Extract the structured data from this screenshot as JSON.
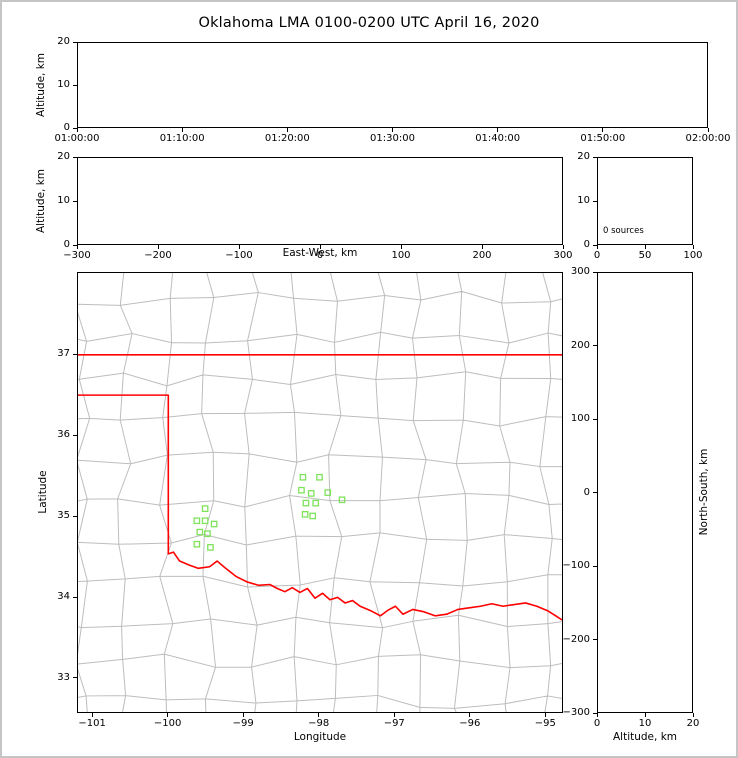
{
  "title": "Oklahoma LMA 0100-0200 UTC April 16, 2020",
  "colors": {
    "background": "#ffffff",
    "frame_border": "#c5c5c5",
    "axis": "#000000",
    "county_line": "#bdbdbd",
    "state_border": "#ff0000",
    "station_marker": "#7ee25a"
  },
  "chart_data": {
    "type": "scatter",
    "description": "Lightning Mapping Array multi-panel display: time-height, east-west height, altitude histogram, plan view map, north-south height. No lightning sources plotted; green squares are LMA stations.",
    "source_count": 0,
    "panels": [
      {
        "id": "time_height",
        "ylabel": "Altitude, km",
        "xlim": [
          0,
          3600
        ],
        "ylim": [
          0,
          20
        ],
        "xtick_vals": [
          0,
          600,
          1200,
          1800,
          2400,
          3000,
          3600
        ],
        "xtick_labels": [
          "01:00:00",
          "01:10:00",
          "01:20:00",
          "01:30:00",
          "01:40:00",
          "01:50:00",
          "02:00:00"
        ],
        "ytick_vals": [
          0,
          10,
          20
        ],
        "ytick_labels": [
          "0",
          "10",
          "20"
        ],
        "points": []
      },
      {
        "id": "ew_height",
        "xlabel": "East-West, km",
        "ylabel": "Altitude, km",
        "xlim": [
          -300,
          300
        ],
        "ylim": [
          0,
          20
        ],
        "xtick_vals": [
          -300,
          -200,
          -100,
          0,
          100,
          200,
          300
        ],
        "xtick_labels": [
          "−300",
          "−200",
          "−100",
          "0",
          "100",
          "200",
          "300"
        ],
        "ytick_vals": [
          0,
          10,
          20
        ],
        "ytick_labels": [
          "0",
          "10",
          "20"
        ],
        "points": []
      },
      {
        "id": "alt_histogram",
        "annotation": "0 sources",
        "xlim": [
          0,
          100
        ],
        "ylim": [
          0,
          20
        ],
        "xtick_vals": [
          0,
          50,
          100
        ],
        "xtick_labels": [
          "0",
          "50",
          "100"
        ],
        "ytick_vals": [
          0,
          10,
          20
        ],
        "ytick_labels": [
          "0",
          "10",
          "20"
        ],
        "points": []
      },
      {
        "id": "plan_view",
        "xlabel": "Longitude",
        "ylabel": "Latitude",
        "xlim": [
          -101.2,
          -94.766
        ],
        "ylim": [
          32.567,
          38.015
        ],
        "xtick_vals": [
          -101,
          -100,
          -99,
          -98,
          -97,
          -96,
          -95
        ],
        "xtick_labels": [
          "−101",
          "−100",
          "−99",
          "−98",
          "−97",
          "−96",
          "−95"
        ],
        "ytick_vals": [
          33,
          34,
          35,
          36,
          37
        ],
        "ytick_labels": [
          "33",
          "34",
          "35",
          "36",
          "37"
        ],
        "stations": [
          [
            -98.21,
            35.48
          ],
          [
            -97.99,
            35.48
          ],
          [
            -98.23,
            35.32
          ],
          [
            -98.1,
            35.28
          ],
          [
            -97.88,
            35.29
          ],
          [
            -98.17,
            35.16
          ],
          [
            -98.04,
            35.16
          ],
          [
            -97.69,
            35.2
          ],
          [
            -98.18,
            35.02
          ],
          [
            -98.08,
            35.0
          ],
          [
            -99.51,
            35.09
          ],
          [
            -99.62,
            34.94
          ],
          [
            -99.51,
            34.94
          ],
          [
            -99.39,
            34.9
          ],
          [
            -99.58,
            34.8
          ],
          [
            -99.48,
            34.78
          ],
          [
            -99.62,
            34.65
          ],
          [
            -99.44,
            34.61
          ]
        ],
        "state_border": [
          [
            [
              -101.2,
              37.0
            ],
            [
              -94.766,
              37.0
            ]
          ],
          [
            [
              -101.2,
              36.5
            ],
            [
              -100.0,
              36.5
            ],
            [
              -100.0,
              34.53
            ],
            [
              -99.93,
              34.55
            ],
            [
              -99.85,
              34.44
            ],
            [
              -99.72,
              34.39
            ],
            [
              -99.6,
              34.35
            ],
            [
              -99.45,
              34.37
            ],
            [
              -99.35,
              34.44
            ],
            [
              -99.25,
              34.36
            ],
            [
              -99.1,
              34.25
            ],
            [
              -98.95,
              34.18
            ],
            [
              -98.8,
              34.14
            ],
            [
              -98.65,
              34.15
            ],
            [
              -98.55,
              34.1
            ],
            [
              -98.45,
              34.06
            ],
            [
              -98.35,
              34.11
            ],
            [
              -98.25,
              34.05
            ],
            [
              -98.15,
              34.1
            ],
            [
              -98.05,
              33.98
            ],
            [
              -97.95,
              34.04
            ],
            [
              -97.85,
              33.96
            ],
            [
              -97.75,
              33.99
            ],
            [
              -97.65,
              33.92
            ],
            [
              -97.55,
              33.95
            ],
            [
              -97.45,
              33.88
            ],
            [
              -97.3,
              33.82
            ],
            [
              -97.18,
              33.76
            ],
            [
              -97.08,
              33.83
            ],
            [
              -96.98,
              33.88
            ],
            [
              -96.88,
              33.78
            ],
            [
              -96.75,
              33.84
            ],
            [
              -96.6,
              33.81
            ],
            [
              -96.45,
              33.76
            ],
            [
              -96.3,
              33.78
            ],
            [
              -96.15,
              33.84
            ],
            [
              -96.0,
              33.86
            ],
            [
              -95.85,
              33.88
            ],
            [
              -95.7,
              33.91
            ],
            [
              -95.55,
              33.88
            ],
            [
              -95.4,
              33.9
            ],
            [
              -95.25,
              33.92
            ],
            [
              -95.1,
              33.88
            ],
            [
              -94.95,
              33.82
            ],
            [
              -94.85,
              33.76
            ],
            [
              -94.766,
              33.71
            ]
          ]
        ]
      },
      {
        "id": "ns_height",
        "xlabel": "Altitude, km",
        "ylabel": "North-South, km",
        "xlim": [
          0,
          20
        ],
        "ylim": [
          -300,
          300
        ],
        "xtick_vals": [
          0,
          10,
          20
        ],
        "xtick_labels": [
          "0",
          "10",
          "20"
        ],
        "ytick_vals": [
          -300,
          -200,
          -100,
          0,
          100,
          200,
          300
        ],
        "ytick_labels": [
          "−300",
          "−200",
          "−100",
          "0",
          "100",
          "200",
          "300"
        ],
        "points": []
      }
    ]
  }
}
